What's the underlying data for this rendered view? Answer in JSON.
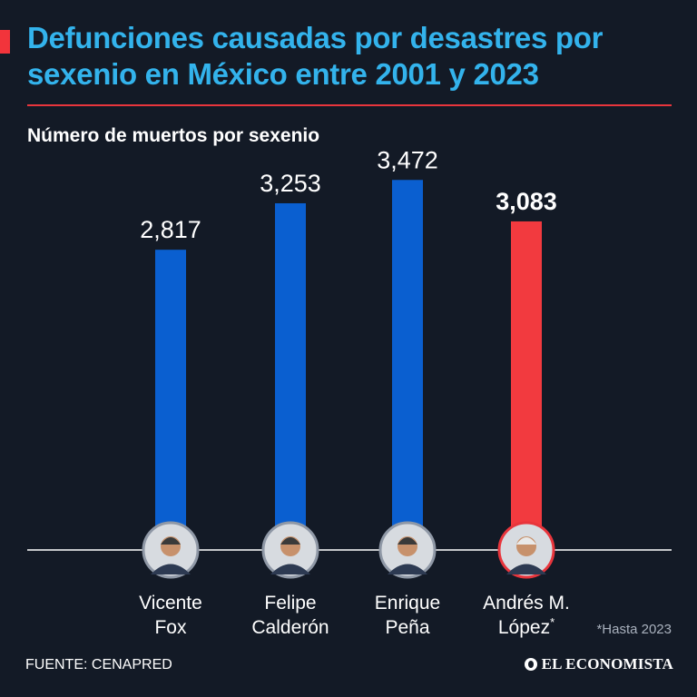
{
  "title": "Defunciones causadas por desastres por sexenio en México entre 2001 y 2023",
  "subtitle": "Número de muertos por sexenio",
  "source": "FUENTE: CENAPRED",
  "footnote": "*Hasta 2023",
  "brand": "EL ECONOMISTA",
  "colors": {
    "background": "#131a26",
    "title": "#33b3ec",
    "accent": "#e8353c",
    "bar_blue": "#0a5fd0",
    "bar_red": "#f23a3f"
  },
  "chart_data": {
    "type": "bar",
    "title": "Defunciones causadas por desastres por sexenio en México entre 2001 y 2023",
    "subtitle": "Número de muertos por sexenio",
    "xlabel": "",
    "ylabel": "",
    "ylim": [
      0,
      3900
    ],
    "grid": false,
    "categories": [
      {
        "line1": "Vicente",
        "line2": "Fox",
        "sup": ""
      },
      {
        "line1": "Felipe",
        "line2": "Calderón",
        "sup": ""
      },
      {
        "line1": "Enrique",
        "line2": "Peña",
        "sup": ""
      },
      {
        "line1": "Andrés M.",
        "line2": "López",
        "sup": "*"
      }
    ],
    "values": [
      2817,
      3253,
      3472,
      3083
    ],
    "value_labels": [
      "2,817",
      "3,253",
      "3,472",
      "3,083"
    ],
    "highlight_index": 3,
    "bar_colors": [
      "#0a5fd0",
      "#0a5fd0",
      "#0a5fd0",
      "#f23a3f"
    ]
  }
}
